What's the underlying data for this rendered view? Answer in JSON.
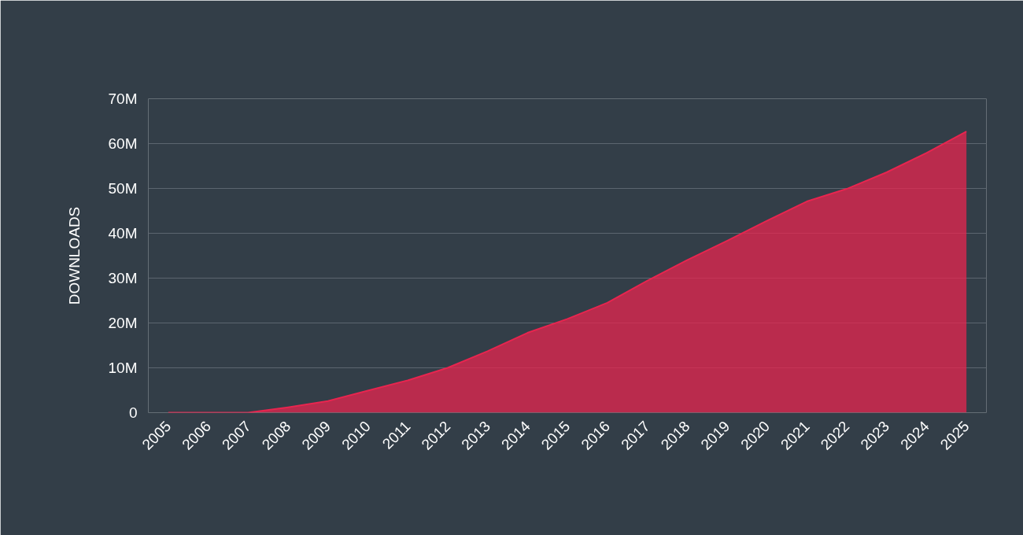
{
  "chart_data": {
    "type": "area",
    "ylabel": "DOWNLOADS",
    "categories": [
      "2005",
      "2006",
      "2007",
      "2008",
      "2009",
      "2010",
      "2011",
      "2012",
      "2013",
      "2014",
      "2015",
      "2016",
      "2017",
      "2018",
      "2019",
      "2020",
      "2021",
      "2022",
      "2023",
      "2024",
      "2025"
    ],
    "series": [
      {
        "color": "#e8254f",
        "values": [
          0,
          0,
          0,
          1200000,
          2600000,
          4900000,
          7200000,
          10000000,
          13700000,
          17800000,
          20900000,
          24500000,
          29400000,
          34000000,
          38300000,
          42800000,
          47100000,
          49900000,
          53600000,
          57900000,
          62700000
        ]
      }
    ],
    "ylim": [
      0,
      70000000
    ],
    "yticks": [
      0,
      {
        "value": 10000000,
        "label": "10M"
      },
      {
        "value": 20000000,
        "label": "20M"
      },
      {
        "value": 30000000,
        "label": "30M"
      },
      {
        "value": 40000000,
        "label": "40M"
      },
      {
        "value": 50000000,
        "label": "50M"
      },
      {
        "value": 60000000,
        "label": "60M"
      },
      {
        "value": 70000000,
        "label": "70M"
      }
    ],
    "grid": "y"
  }
}
